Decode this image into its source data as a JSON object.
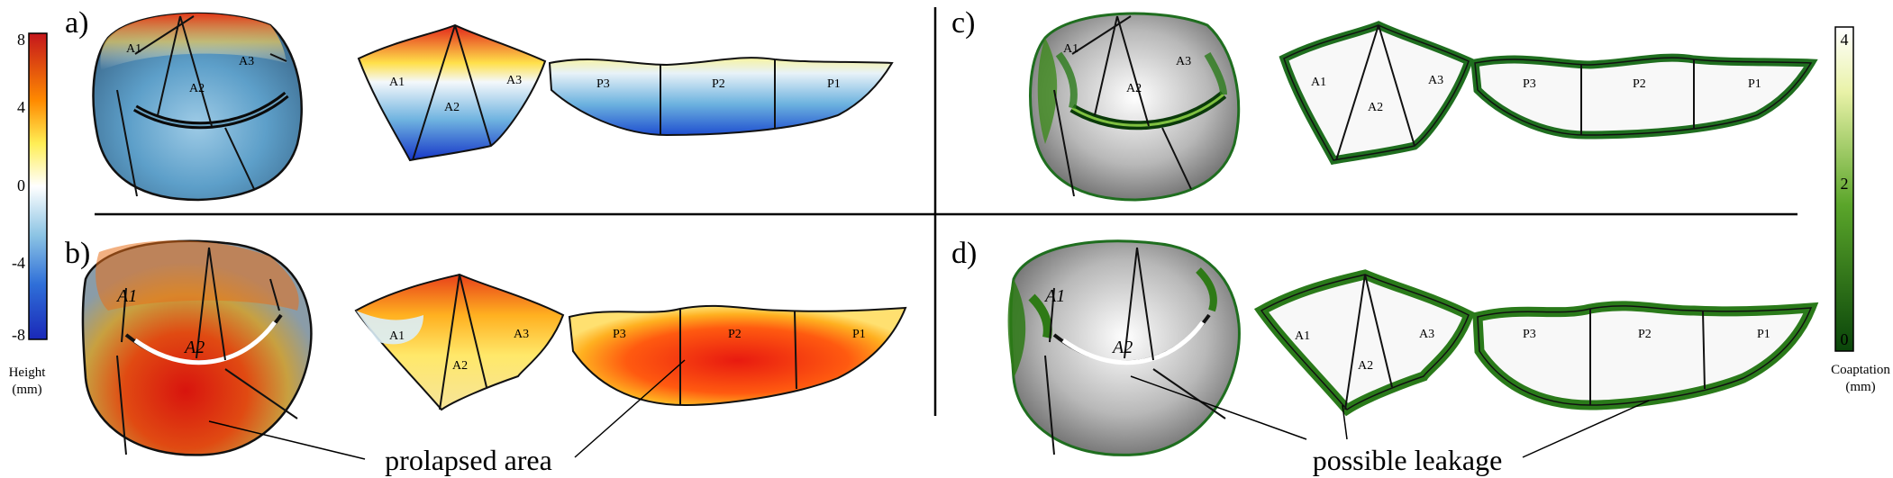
{
  "panels": {
    "a": "a)",
    "b": "b)",
    "c": "c)",
    "d": "d)"
  },
  "segments": {
    "A1": "A1",
    "A2": "A2",
    "A3": "A3",
    "P1": "P1",
    "P2": "P2",
    "P3": "P3"
  },
  "height_colorbar": {
    "title_line1": "Height",
    "title_line2": "(mm)",
    "ticks": [
      "8",
      "4",
      "0",
      "-4",
      "-8"
    ],
    "colors": [
      "#d7191c",
      "#ff7f00",
      "#ffff66",
      "#ffffff",
      "#8fc7e6",
      "#2a6fdb",
      "#1b2fbf"
    ]
  },
  "coaptation_colorbar": {
    "title_line1": "Coaptation",
    "title_line2": "(mm)",
    "ticks": [
      "4",
      "2",
      "0"
    ],
    "colors": [
      "#ffffff",
      "#e6f0a0",
      "#5aa52a",
      "#0b4d0b"
    ]
  },
  "annotations": {
    "prolapsed": "prolapsed area",
    "leakage": "possible leakage"
  }
}
